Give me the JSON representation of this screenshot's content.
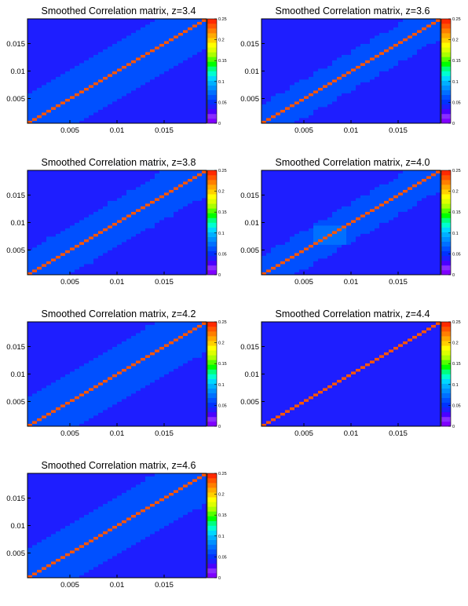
{
  "chart_data": [
    {
      "type": "heatmap",
      "title": "Smoothed Correlation matrix, z=3.4",
      "xlim": [
        0.0005,
        0.0195
      ],
      "ylim": [
        0.0005,
        0.0195
      ],
      "xticks": [
        "0.005",
        "0.01",
        "0.015"
      ],
      "yticks": [
        "0.005",
        "0.01",
        "0.015"
      ],
      "zticks": [
        "0",
        "0.05",
        "0.1",
        "0.15",
        "0.2",
        "0.25"
      ],
      "zlim": [
        0,
        0.25
      ],
      "diagonal_value": 0.23,
      "background_value": 0.045,
      "band_value": 0.057,
      "band_width": 0.0052,
      "hot_value": 0.062,
      "hot_region": [
        0.0005,
        0.004,
        0.0005,
        0.002
      ]
    },
    {
      "type": "heatmap",
      "title": "Smoothed Correlation matrix, z=3.6",
      "xlim": [
        0.0005,
        0.0195
      ],
      "ylim": [
        0.0005,
        0.0195
      ],
      "xticks": [
        "0.005",
        "0.01",
        "0.015"
      ],
      "yticks": [
        "0.005",
        "0.01",
        "0.015"
      ],
      "zticks": [
        "0",
        "0.05",
        "0.1",
        "0.15",
        "0.2",
        "0.25"
      ],
      "zlim": [
        0,
        0.25
      ],
      "diagonal_value": 0.23,
      "background_value": 0.045,
      "band_value": 0.057,
      "band_width": 0.0035,
      "hot_value": 0.062,
      "hot_region": [
        0.0005,
        0.0025,
        0.0005,
        0.0015
      ]
    },
    {
      "type": "heatmap",
      "title": "Smoothed Correlation matrix, z=3.8",
      "xlim": [
        0.0005,
        0.0195
      ],
      "ylim": [
        0.0005,
        0.0195
      ],
      "xticks": [
        "0.005",
        "0.01",
        "0.015"
      ],
      "yticks": [
        "0.005",
        "0.01",
        "0.015"
      ],
      "zticks": [
        "0",
        "0.05",
        "0.1",
        "0.15",
        "0.2",
        "0.25"
      ],
      "zlim": [
        0,
        0.25
      ],
      "diagonal_value": 0.23,
      "background_value": 0.045,
      "band_value": 0.057,
      "band_width": 0.0045,
      "hot_value": null,
      "hot_region": null
    },
    {
      "type": "heatmap",
      "title": "Smoothed Correlation matrix, z=4.0",
      "xlim": [
        0.0005,
        0.0195
      ],
      "ylim": [
        0.0005,
        0.0195
      ],
      "xticks": [
        "0.005",
        "0.01",
        "0.015"
      ],
      "yticks": [
        "0.005",
        "0.01",
        "0.015"
      ],
      "zticks": [
        "0",
        "0.05",
        "0.1",
        "0.15",
        "0.2",
        "0.25"
      ],
      "zlim": [
        0,
        0.25
      ],
      "diagonal_value": 0.23,
      "background_value": 0.045,
      "band_value": 0.057,
      "band_width": 0.0035,
      "hot_value": 0.075,
      "hot_region": [
        0.006,
        0.0095,
        0.006,
        0.0095
      ]
    },
    {
      "type": "heatmap",
      "title": "Smoothed Correlation matrix, z=4.2",
      "xlim": [
        0.0005,
        0.0195
      ],
      "ylim": [
        0.0005,
        0.0195
      ],
      "xticks": [
        "0.005",
        "0.01",
        "0.015"
      ],
      "yticks": [
        "0.005",
        "0.01",
        "0.015"
      ],
      "zticks": [
        "0",
        "0.05",
        "0.1",
        "0.15",
        "0.2",
        "0.25"
      ],
      "zlim": [
        0,
        0.25
      ],
      "diagonal_value": 0.23,
      "background_value": 0.045,
      "band_value": 0.057,
      "band_width": 0.0055,
      "hot_value": null,
      "hot_region": null
    },
    {
      "type": "heatmap",
      "title": "Smoothed Correlation matrix, z=4.4",
      "xlim": [
        0.0005,
        0.0195
      ],
      "ylim": [
        0.0005,
        0.0195
      ],
      "xticks": [
        "0.005",
        "0.01",
        "0.015"
      ],
      "yticks": [
        "0.005",
        "0.01",
        "0.015"
      ],
      "zticks": [
        "0",
        "0.05",
        "0.1",
        "0.15",
        "0.2",
        "0.25"
      ],
      "zlim": [
        0,
        0.25
      ],
      "diagonal_value": 0.23,
      "background_value": 0.038,
      "band_value": null,
      "band_width": 0,
      "hot_value": null,
      "hot_region": null
    },
    {
      "type": "heatmap",
      "title": "Smoothed Correlation matrix, z=4.6",
      "xlim": [
        0.0005,
        0.0195
      ],
      "ylim": [
        0.0005,
        0.0195
      ],
      "xticks": [
        "0.005",
        "0.01",
        "0.015"
      ],
      "yticks": [
        "0.005",
        "0.01",
        "0.015"
      ],
      "zticks": [
        "0",
        "0.05",
        "0.1",
        "0.15",
        "0.2",
        "0.25"
      ],
      "zlim": [
        0,
        0.25
      ],
      "diagonal_value": 0.23,
      "background_value": 0.045,
      "band_value": 0.057,
      "band_width": 0.0055,
      "hot_value": null,
      "hot_region": null
    }
  ],
  "palette": [
    "#7f00ff",
    "#8a2cff",
    "#4b00ff",
    "#1e1eff",
    "#0032ff",
    "#0050ff",
    "#0070ff",
    "#0090ff",
    "#00b0ff",
    "#00d8ff",
    "#00ffd0",
    "#00ff80",
    "#00ff00",
    "#55ff00",
    "#aaff00",
    "#ddff00",
    "#ffff00",
    "#ffd000",
    "#ffaa00",
    "#ff7f00",
    "#ff5500",
    "#ff2a00"
  ]
}
